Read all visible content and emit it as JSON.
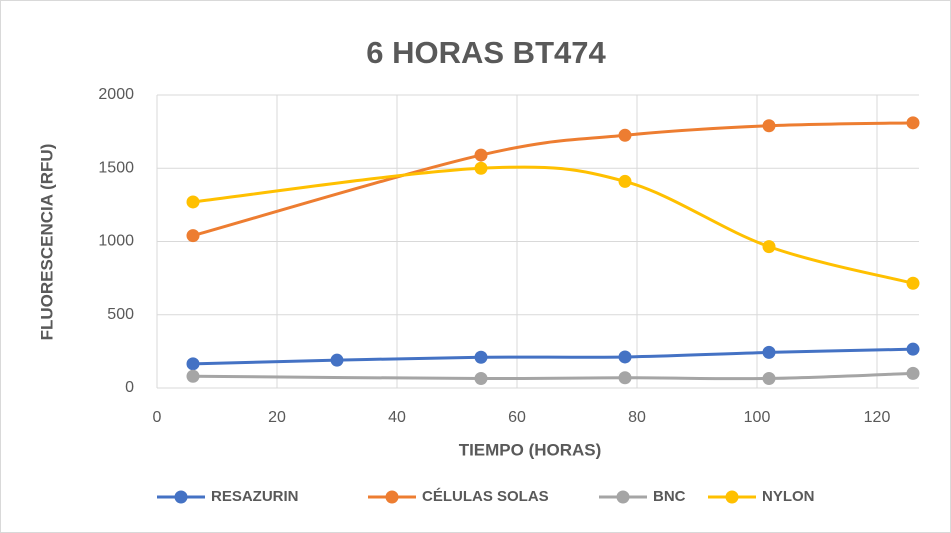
{
  "chart_data": {
    "type": "line",
    "title": "6 HORAS BT474",
    "x_label": "TIEMPO (HORAS)",
    "y_label": "FLUORESCENCIA (RFU)",
    "series": [
      {
        "name": "RESAZURIN",
        "color": "#4472c4",
        "x": [
          6,
          30,
          54,
          78,
          102,
          126
        ],
        "values": [
          165,
          190,
          210,
          212,
          243,
          265
        ]
      },
      {
        "name": "CÉLULAS SOLAS",
        "color": "#ed7d31",
        "x": [
          6,
          54,
          78,
          102,
          126
        ],
        "values": [
          1040,
          1590,
          1725,
          1790,
          1810
        ]
      },
      {
        "name": "BNC",
        "color": "#a5a5a5",
        "x": [
          6,
          54,
          78,
          102,
          126
        ],
        "values": [
          80,
          65,
          70,
          65,
          100
        ]
      },
      {
        "name": "NYLON",
        "color": "#ffc000",
        "x": [
          6,
          54,
          78,
          102,
          126
        ],
        "values": [
          1270,
          1500,
          1410,
          965,
          715
        ]
      }
    ],
    "xlim": [
      0,
      127
    ],
    "xticks": [
      0,
      20,
      40,
      60,
      80,
      100,
      120
    ],
    "ylim": [
      0,
      2000
    ],
    "yticks": [
      0,
      500,
      1000,
      1500,
      2000
    ],
    "grid": true,
    "smooth": true,
    "legend": "bottom"
  }
}
